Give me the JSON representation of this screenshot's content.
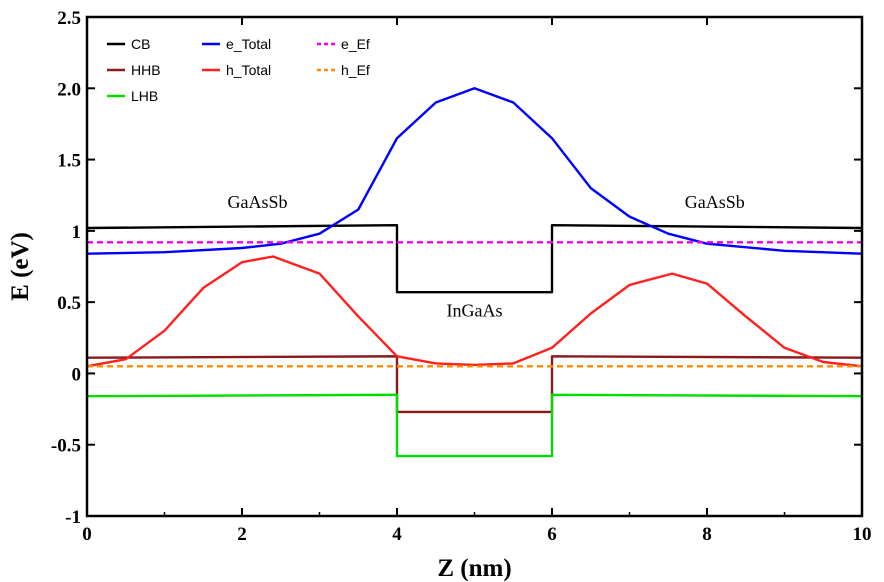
{
  "chart_data": {
    "type": "line",
    "xlabel": "Z (nm)",
    "ylabel": "E (eV)",
    "xlim": [
      0,
      10
    ],
    "ylim": [
      -1,
      2.5
    ],
    "xticks": [
      "0",
      "2",
      "4",
      "6",
      "8",
      "10"
    ],
    "yticks": [
      "-1",
      "-0.5",
      "0",
      "0.5",
      "1",
      "1.5",
      "2.0",
      "2.5"
    ],
    "grid": false,
    "legend_position": "top-left",
    "legend": [
      "CB",
      "e_Total",
      "e_Ef",
      "HHB",
      "h_Total",
      "h_Ef",
      "LHB"
    ],
    "annotations": [
      {
        "text": "GaAsSb",
        "x": 2.2,
        "y": 1.16
      },
      {
        "text": "GaAsSb",
        "x": 8.1,
        "y": 1.16
      },
      {
        "text": "InGaAs",
        "x": 5.0,
        "y": 0.4
      }
    ],
    "series": [
      {
        "name": "CB",
        "color": "#000000",
        "style": "solid",
        "x": [
          0,
          4,
          4,
          6,
          6,
          10
        ],
        "y": [
          1.02,
          1.04,
          0.57,
          0.57,
          1.04,
          1.02
        ]
      },
      {
        "name": "HHB",
        "color": "#8b1a1a",
        "style": "solid",
        "x": [
          0,
          4,
          4,
          6,
          6,
          10
        ],
        "y": [
          0.11,
          0.12,
          -0.27,
          -0.27,
          0.12,
          0.11
        ]
      },
      {
        "name": "LHB",
        "color": "#00dd00",
        "style": "solid",
        "x": [
          0,
          4,
          4,
          6,
          6,
          10
        ],
        "y": [
          -0.16,
          -0.15,
          -0.58,
          -0.58,
          -0.15,
          -0.16
        ]
      },
      {
        "name": "e_Total",
        "color": "#0000ff",
        "style": "solid",
        "x": [
          0,
          1,
          2,
          2.5,
          3,
          3.5,
          4,
          4.5,
          5,
          5.5,
          6,
          6.5,
          7,
          7.5,
          8,
          9,
          10
        ],
        "y": [
          0.84,
          0.85,
          0.88,
          0.91,
          0.98,
          1.15,
          1.65,
          1.9,
          2.0,
          1.9,
          1.65,
          1.3,
          1.1,
          0.98,
          0.91,
          0.86,
          0.84
        ]
      },
      {
        "name": "h_Total",
        "color": "#ff2020",
        "style": "solid",
        "x": [
          0,
          0.5,
          1,
          1.5,
          2,
          2.4,
          3,
          3.5,
          4,
          4.5,
          5,
          5.5,
          6,
          6.5,
          7,
          7.55,
          8,
          8.5,
          9,
          9.5,
          10
        ],
        "y": [
          0.05,
          0.1,
          0.3,
          0.6,
          0.78,
          0.82,
          0.7,
          0.4,
          0.12,
          0.07,
          0.06,
          0.07,
          0.18,
          0.42,
          0.62,
          0.7,
          0.63,
          0.4,
          0.18,
          0.08,
          0.05
        ]
      },
      {
        "name": "e_Ef",
        "color": "#ee00ee",
        "style": "dashed",
        "x": [
          0,
          10
        ],
        "y": [
          0.92,
          0.92
        ]
      },
      {
        "name": "h_Ef",
        "color": "#ff8c00",
        "style": "dashed",
        "x": [
          0,
          10
        ],
        "y": [
          0.05,
          0.05
        ]
      }
    ]
  }
}
